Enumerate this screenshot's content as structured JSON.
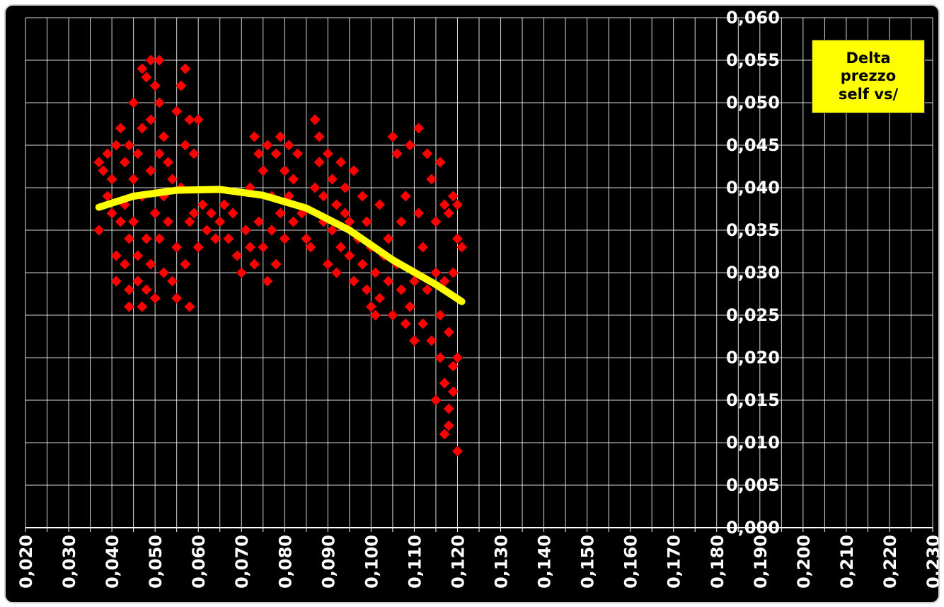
{
  "chart_data": {
    "type": "scatter",
    "title": "",
    "xlabel": "",
    "ylabel": "",
    "xlim": [
      0.02,
      0.23
    ],
    "ylim": [
      0.0,
      0.06
    ],
    "x_ticks": [
      "0,020",
      "0,030",
      "0,040",
      "0,050",
      "0,060",
      "0,070",
      "0,080",
      "0,090",
      "0,100",
      "0,110",
      "0,120",
      "0,130",
      "0,140",
      "0,150",
      "0,160",
      "0,170",
      "0,180",
      "0,190",
      "0,200",
      "0,210",
      "0,220",
      "0,230"
    ],
    "y_ticks": [
      "0,000",
      "0,005",
      "0,010",
      "0,015",
      "0,020",
      "0,025",
      "0,030",
      "0,035",
      "0,040",
      "0,045",
      "0,050",
      "0,055",
      "0,060"
    ],
    "grid": true,
    "legend": {
      "text": "Delta\nprezzo\nself vs/",
      "position": "top-right",
      "color": "#ffff00"
    },
    "series": [
      {
        "marker": "diamond",
        "color": "#ff0000",
        "points": [
          [
            0.037,
            0.035
          ],
          [
            0.037,
            0.043
          ],
          [
            0.038,
            0.042
          ],
          [
            0.039,
            0.039
          ],
          [
            0.039,
            0.044
          ],
          [
            0.04,
            0.041
          ],
          [
            0.04,
            0.037
          ],
          [
            0.041,
            0.045
          ],
          [
            0.041,
            0.032
          ],
          [
            0.041,
            0.029
          ],
          [
            0.042,
            0.036
          ],
          [
            0.042,
            0.047
          ],
          [
            0.043,
            0.043
          ],
          [
            0.043,
            0.031
          ],
          [
            0.043,
            0.038
          ],
          [
            0.044,
            0.045
          ],
          [
            0.044,
            0.034
          ],
          [
            0.044,
            0.028
          ],
          [
            0.044,
            0.026
          ],
          [
            0.045,
            0.041
          ],
          [
            0.045,
            0.05
          ],
          [
            0.045,
            0.036
          ],
          [
            0.046,
            0.032
          ],
          [
            0.046,
            0.044
          ],
          [
            0.046,
            0.029
          ],
          [
            0.047,
            0.026
          ],
          [
            0.047,
            0.039
          ],
          [
            0.047,
            0.054
          ],
          [
            0.047,
            0.047
          ],
          [
            0.048,
            0.034
          ],
          [
            0.048,
            0.053
          ],
          [
            0.048,
            0.028
          ],
          [
            0.049,
            0.055
          ],
          [
            0.049,
            0.042
          ],
          [
            0.049,
            0.031
          ],
          [
            0.049,
            0.048
          ],
          [
            0.05,
            0.037
          ],
          [
            0.05,
            0.052
          ],
          [
            0.05,
            0.027
          ],
          [
            0.051,
            0.044
          ],
          [
            0.051,
            0.034
          ],
          [
            0.051,
            0.05
          ],
          [
            0.051,
            0.055
          ],
          [
            0.052,
            0.039
          ],
          [
            0.052,
            0.046
          ],
          [
            0.052,
            0.03
          ],
          [
            0.053,
            0.043
          ],
          [
            0.053,
            0.036
          ],
          [
            0.054,
            0.029
          ],
          [
            0.054,
            0.041
          ],
          [
            0.055,
            0.049
          ],
          [
            0.055,
            0.027
          ],
          [
            0.055,
            0.033
          ],
          [
            0.056,
            0.052
          ],
          [
            0.056,
            0.04
          ],
          [
            0.057,
            0.054
          ],
          [
            0.057,
            0.045
          ],
          [
            0.057,
            0.031
          ],
          [
            0.058,
            0.026
          ],
          [
            0.058,
            0.048
          ],
          [
            0.058,
            0.036
          ],
          [
            0.059,
            0.037
          ],
          [
            0.059,
            0.044
          ],
          [
            0.06,
            0.033
          ],
          [
            0.06,
            0.048
          ],
          [
            0.061,
            0.038
          ],
          [
            0.062,
            0.035
          ],
          [
            0.063,
            0.037
          ],
          [
            0.064,
            0.034
          ],
          [
            0.065,
            0.036
          ],
          [
            0.066,
            0.038
          ],
          [
            0.067,
            0.034
          ],
          [
            0.068,
            0.037
          ],
          [
            0.069,
            0.032
          ],
          [
            0.07,
            0.03
          ],
          [
            0.071,
            0.035
          ],
          [
            0.072,
            0.033
          ],
          [
            0.072,
            0.04
          ],
          [
            0.073,
            0.046
          ],
          [
            0.073,
            0.031
          ],
          [
            0.074,
            0.044
          ],
          [
            0.074,
            0.036
          ],
          [
            0.075,
            0.042
          ],
          [
            0.075,
            0.033
          ],
          [
            0.076,
            0.029
          ],
          [
            0.076,
            0.045
          ],
          [
            0.077,
            0.039
          ],
          [
            0.077,
            0.035
          ],
          [
            0.078,
            0.044
          ],
          [
            0.078,
            0.031
          ],
          [
            0.079,
            0.046
          ],
          [
            0.079,
            0.037
          ],
          [
            0.08,
            0.042
          ],
          [
            0.08,
            0.034
          ],
          [
            0.081,
            0.045
          ],
          [
            0.081,
            0.039
          ],
          [
            0.082,
            0.041
          ],
          [
            0.082,
            0.036
          ],
          [
            0.083,
            0.044
          ],
          [
            0.084,
            0.037
          ],
          [
            0.085,
            0.034
          ],
          [
            0.086,
            0.033
          ],
          [
            0.087,
            0.048
          ],
          [
            0.087,
            0.04
          ],
          [
            0.088,
            0.046
          ],
          [
            0.088,
            0.043
          ],
          [
            0.089,
            0.039
          ],
          [
            0.089,
            0.036
          ],
          [
            0.09,
            0.044
          ],
          [
            0.09,
            0.031
          ],
          [
            0.091,
            0.041
          ],
          [
            0.091,
            0.035
          ],
          [
            0.092,
            0.038
          ],
          [
            0.092,
            0.03
          ],
          [
            0.093,
            0.043
          ],
          [
            0.093,
            0.033
          ],
          [
            0.094,
            0.037
          ],
          [
            0.094,
            0.04
          ],
          [
            0.095,
            0.032
          ],
          [
            0.095,
            0.036
          ],
          [
            0.096,
            0.042
          ],
          [
            0.096,
            0.029
          ],
          [
            0.097,
            0.034
          ],
          [
            0.098,
            0.039
          ],
          [
            0.098,
            0.031
          ],
          [
            0.099,
            0.028
          ],
          [
            0.099,
            0.036
          ],
          [
            0.1,
            0.026
          ],
          [
            0.1,
            0.033
          ],
          [
            0.101,
            0.03
          ],
          [
            0.101,
            0.025
          ],
          [
            0.102,
            0.038
          ],
          [
            0.102,
            0.027
          ],
          [
            0.103,
            0.032
          ],
          [
            0.104,
            0.029
          ],
          [
            0.104,
            0.034
          ],
          [
            0.105,
            0.025
          ],
          [
            0.105,
            0.046
          ],
          [
            0.106,
            0.044
          ],
          [
            0.106,
            0.031
          ],
          [
            0.107,
            0.036
          ],
          [
            0.107,
            0.028
          ],
          [
            0.108,
            0.039
          ],
          [
            0.108,
            0.024
          ],
          [
            0.109,
            0.045
          ],
          [
            0.109,
            0.026
          ],
          [
            0.11,
            0.022
          ],
          [
            0.11,
            0.029
          ],
          [
            0.111,
            0.047
          ],
          [
            0.111,
            0.037
          ],
          [
            0.112,
            0.033
          ],
          [
            0.112,
            0.024
          ],
          [
            0.113,
            0.044
          ],
          [
            0.113,
            0.028
          ],
          [
            0.114,
            0.041
          ],
          [
            0.114,
            0.022
          ],
          [
            0.115,
            0.036
          ],
          [
            0.115,
            0.03
          ],
          [
            0.115,
            0.015
          ],
          [
            0.116,
            0.043
          ],
          [
            0.116,
            0.025
          ],
          [
            0.116,
            0.02
          ],
          [
            0.117,
            0.038
          ],
          [
            0.117,
            0.017
          ],
          [
            0.117,
            0.011
          ],
          [
            0.117,
            0.029
          ],
          [
            0.118,
            0.014
          ],
          [
            0.118,
            0.037
          ],
          [
            0.118,
            0.012
          ],
          [
            0.118,
            0.023
          ],
          [
            0.119,
            0.016
          ],
          [
            0.119,
            0.039
          ],
          [
            0.119,
            0.03
          ],
          [
            0.119,
            0.019
          ],
          [
            0.12,
            0.034
          ],
          [
            0.12,
            0.009
          ],
          [
            0.12,
            0.038
          ],
          [
            0.12,
            0.02
          ],
          [
            0.121,
            0.033
          ]
        ]
      },
      {
        "type": "line",
        "color": "#ffff00",
        "points": [
          [
            0.037,
            0.0377
          ],
          [
            0.045,
            0.039
          ],
          [
            0.055,
            0.0397
          ],
          [
            0.065,
            0.0398
          ],
          [
            0.075,
            0.0391
          ],
          [
            0.085,
            0.0376
          ],
          [
            0.095,
            0.035
          ],
          [
            0.105,
            0.0315
          ],
          [
            0.115,
            0.0286
          ],
          [
            0.121,
            0.0266
          ]
        ]
      }
    ]
  }
}
